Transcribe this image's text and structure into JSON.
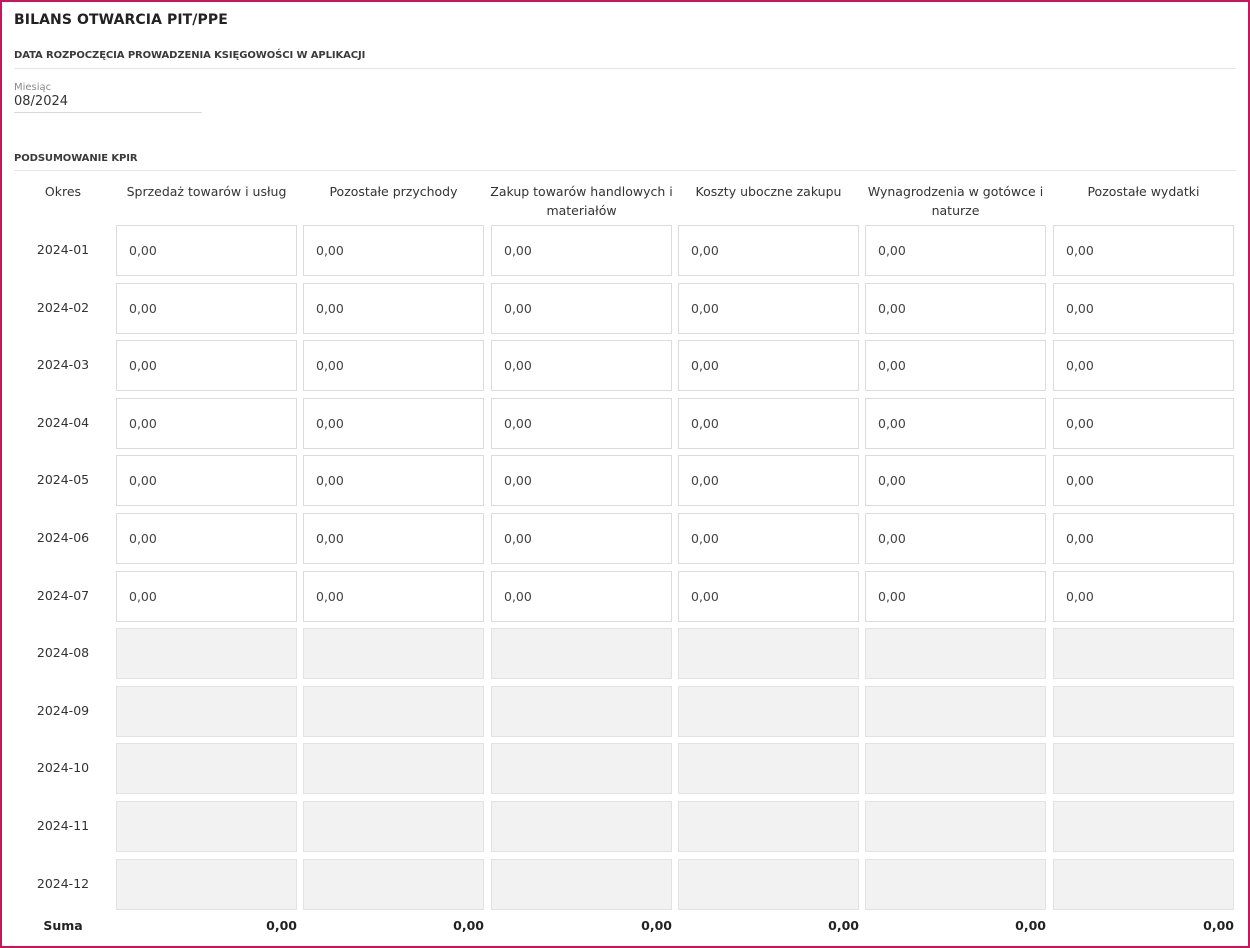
{
  "page": {
    "title": "BILANS OTWARCIA PIT/PPE",
    "accent_color": "#c8155c"
  },
  "start_section": {
    "title": "DATA ROZPOCZĘCIA PROWADZENIA KSIĘGOWOŚCI W APLIKACJI",
    "month_label": "Miesiąc",
    "month_value": "08/2024"
  },
  "kpir": {
    "title": "PODSUMOWANIE KPIR",
    "columns": [
      "Okres",
      "Sprzedaż towarów i usług",
      "Pozostałe przychody",
      "Zakup towarów handlowych i materiałów",
      "Koszty uboczne zakupu",
      "Wynagrodzenia w gotówce i naturze",
      "Pozostałe wydatki"
    ],
    "rows": [
      {
        "period": "2024-01",
        "enabled": true,
        "values": [
          "0,00",
          "0,00",
          "0,00",
          "0,00",
          "0,00",
          "0,00"
        ]
      },
      {
        "period": "2024-02",
        "enabled": true,
        "values": [
          "0,00",
          "0,00",
          "0,00",
          "0,00",
          "0,00",
          "0,00"
        ]
      },
      {
        "period": "2024-03",
        "enabled": true,
        "values": [
          "0,00",
          "0,00",
          "0,00",
          "0,00",
          "0,00",
          "0,00"
        ]
      },
      {
        "period": "2024-04",
        "enabled": true,
        "values": [
          "0,00",
          "0,00",
          "0,00",
          "0,00",
          "0,00",
          "0,00"
        ]
      },
      {
        "period": "2024-05",
        "enabled": true,
        "values": [
          "0,00",
          "0,00",
          "0,00",
          "0,00",
          "0,00",
          "0,00"
        ]
      },
      {
        "period": "2024-06",
        "enabled": true,
        "values": [
          "0,00",
          "0,00",
          "0,00",
          "0,00",
          "0,00",
          "0,00"
        ]
      },
      {
        "period": "2024-07",
        "enabled": true,
        "values": [
          "0,00",
          "0,00",
          "0,00",
          "0,00",
          "0,00",
          "0,00"
        ]
      },
      {
        "period": "2024-08",
        "enabled": false,
        "values": [
          "",
          "",
          "",
          "",
          "",
          ""
        ]
      },
      {
        "period": "2024-09",
        "enabled": false,
        "values": [
          "",
          "",
          "",
          "",
          "",
          ""
        ]
      },
      {
        "period": "2024-10",
        "enabled": false,
        "values": [
          "",
          "",
          "",
          "",
          "",
          ""
        ]
      },
      {
        "period": "2024-11",
        "enabled": false,
        "values": [
          "",
          "",
          "",
          "",
          "",
          ""
        ]
      },
      {
        "period": "2024-12",
        "enabled": false,
        "values": [
          "",
          "",
          "",
          "",
          "",
          ""
        ]
      }
    ],
    "sum_label": "Suma",
    "sums": [
      "0,00",
      "0,00",
      "0,00",
      "0,00",
      "0,00",
      "0,00"
    ]
  }
}
